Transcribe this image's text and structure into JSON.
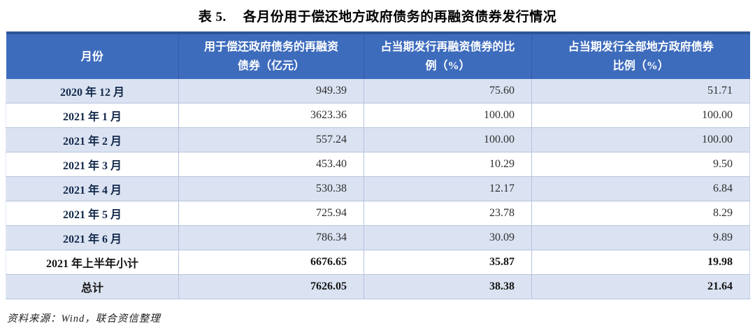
{
  "title": {
    "label": "表 5.",
    "text": "各月份用于偿还地方政府债务的再融资债券发行情况"
  },
  "table": {
    "columns": [
      {
        "line1": "月份",
        "line2": ""
      },
      {
        "line1": "用于偿还政府债务的再融资",
        "line2": "债券（亿元）"
      },
      {
        "line1": "占当期发行再融资债券的比",
        "line2": "例（%）"
      },
      {
        "line1": "占当期发行全部地方政府债券",
        "line2": "比例（%）"
      }
    ],
    "rows": [
      {
        "month": "2020 年 12 月",
        "amount": "949.39",
        "pct_refinancing": "75.60",
        "pct_all": "51.71",
        "emphasis": false
      },
      {
        "month": "2021 年 1 月",
        "amount": "3623.36",
        "pct_refinancing": "100.00",
        "pct_all": "100.00",
        "emphasis": false
      },
      {
        "month": "2021 年 2 月",
        "amount": "557.24",
        "pct_refinancing": "100.00",
        "pct_all": "100.00",
        "emphasis": false
      },
      {
        "month": "2021 年 3 月",
        "amount": "453.40",
        "pct_refinancing": "10.29",
        "pct_all": "9.50",
        "emphasis": false
      },
      {
        "month": "2021 年 4 月",
        "amount": "530.38",
        "pct_refinancing": "12.17",
        "pct_all": "6.84",
        "emphasis": false
      },
      {
        "month": "2021 年 5 月",
        "amount": "725.94",
        "pct_refinancing": "23.78",
        "pct_all": "8.29",
        "emphasis": false
      },
      {
        "month": "2021 年 6 月",
        "amount": "786.34",
        "pct_refinancing": "30.09",
        "pct_all": "9.89",
        "emphasis": false
      },
      {
        "month": "2021 年上半年小计",
        "amount": "6676.65",
        "pct_refinancing": "35.87",
        "pct_all": "19.98",
        "emphasis": true
      },
      {
        "month": "总计",
        "amount": "7626.05",
        "pct_refinancing": "38.38",
        "pct_all": "21.64",
        "emphasis": true
      }
    ]
  },
  "source": "资料来源：Wind，联合资信整理",
  "colors": {
    "header_bg": "#3e6cbd",
    "header_top_border": "#2e5597",
    "alt_row_bg": "#dbe3f2",
    "grid_line": "#b7c3de",
    "month_text": "#13294b"
  }
}
